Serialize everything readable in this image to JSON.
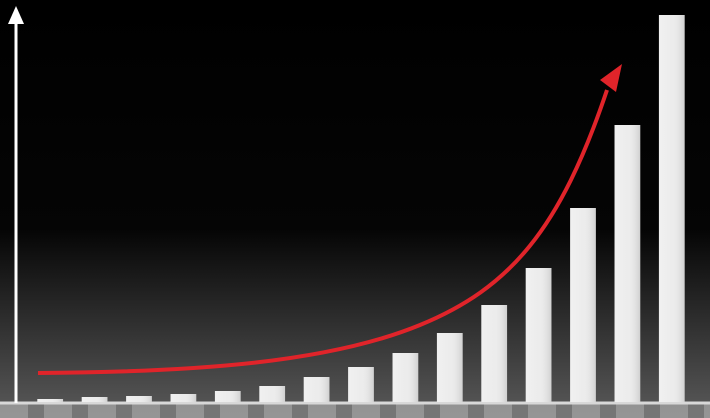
{
  "chart_data": {
    "type": "bar",
    "values": [
      3,
      5,
      6,
      8,
      11,
      16,
      25,
      35,
      49,
      69,
      97,
      134,
      194,
      277,
      387
    ],
    "color": "#ececec",
    "ylim": [
      0,
      400
    ]
  }
}
